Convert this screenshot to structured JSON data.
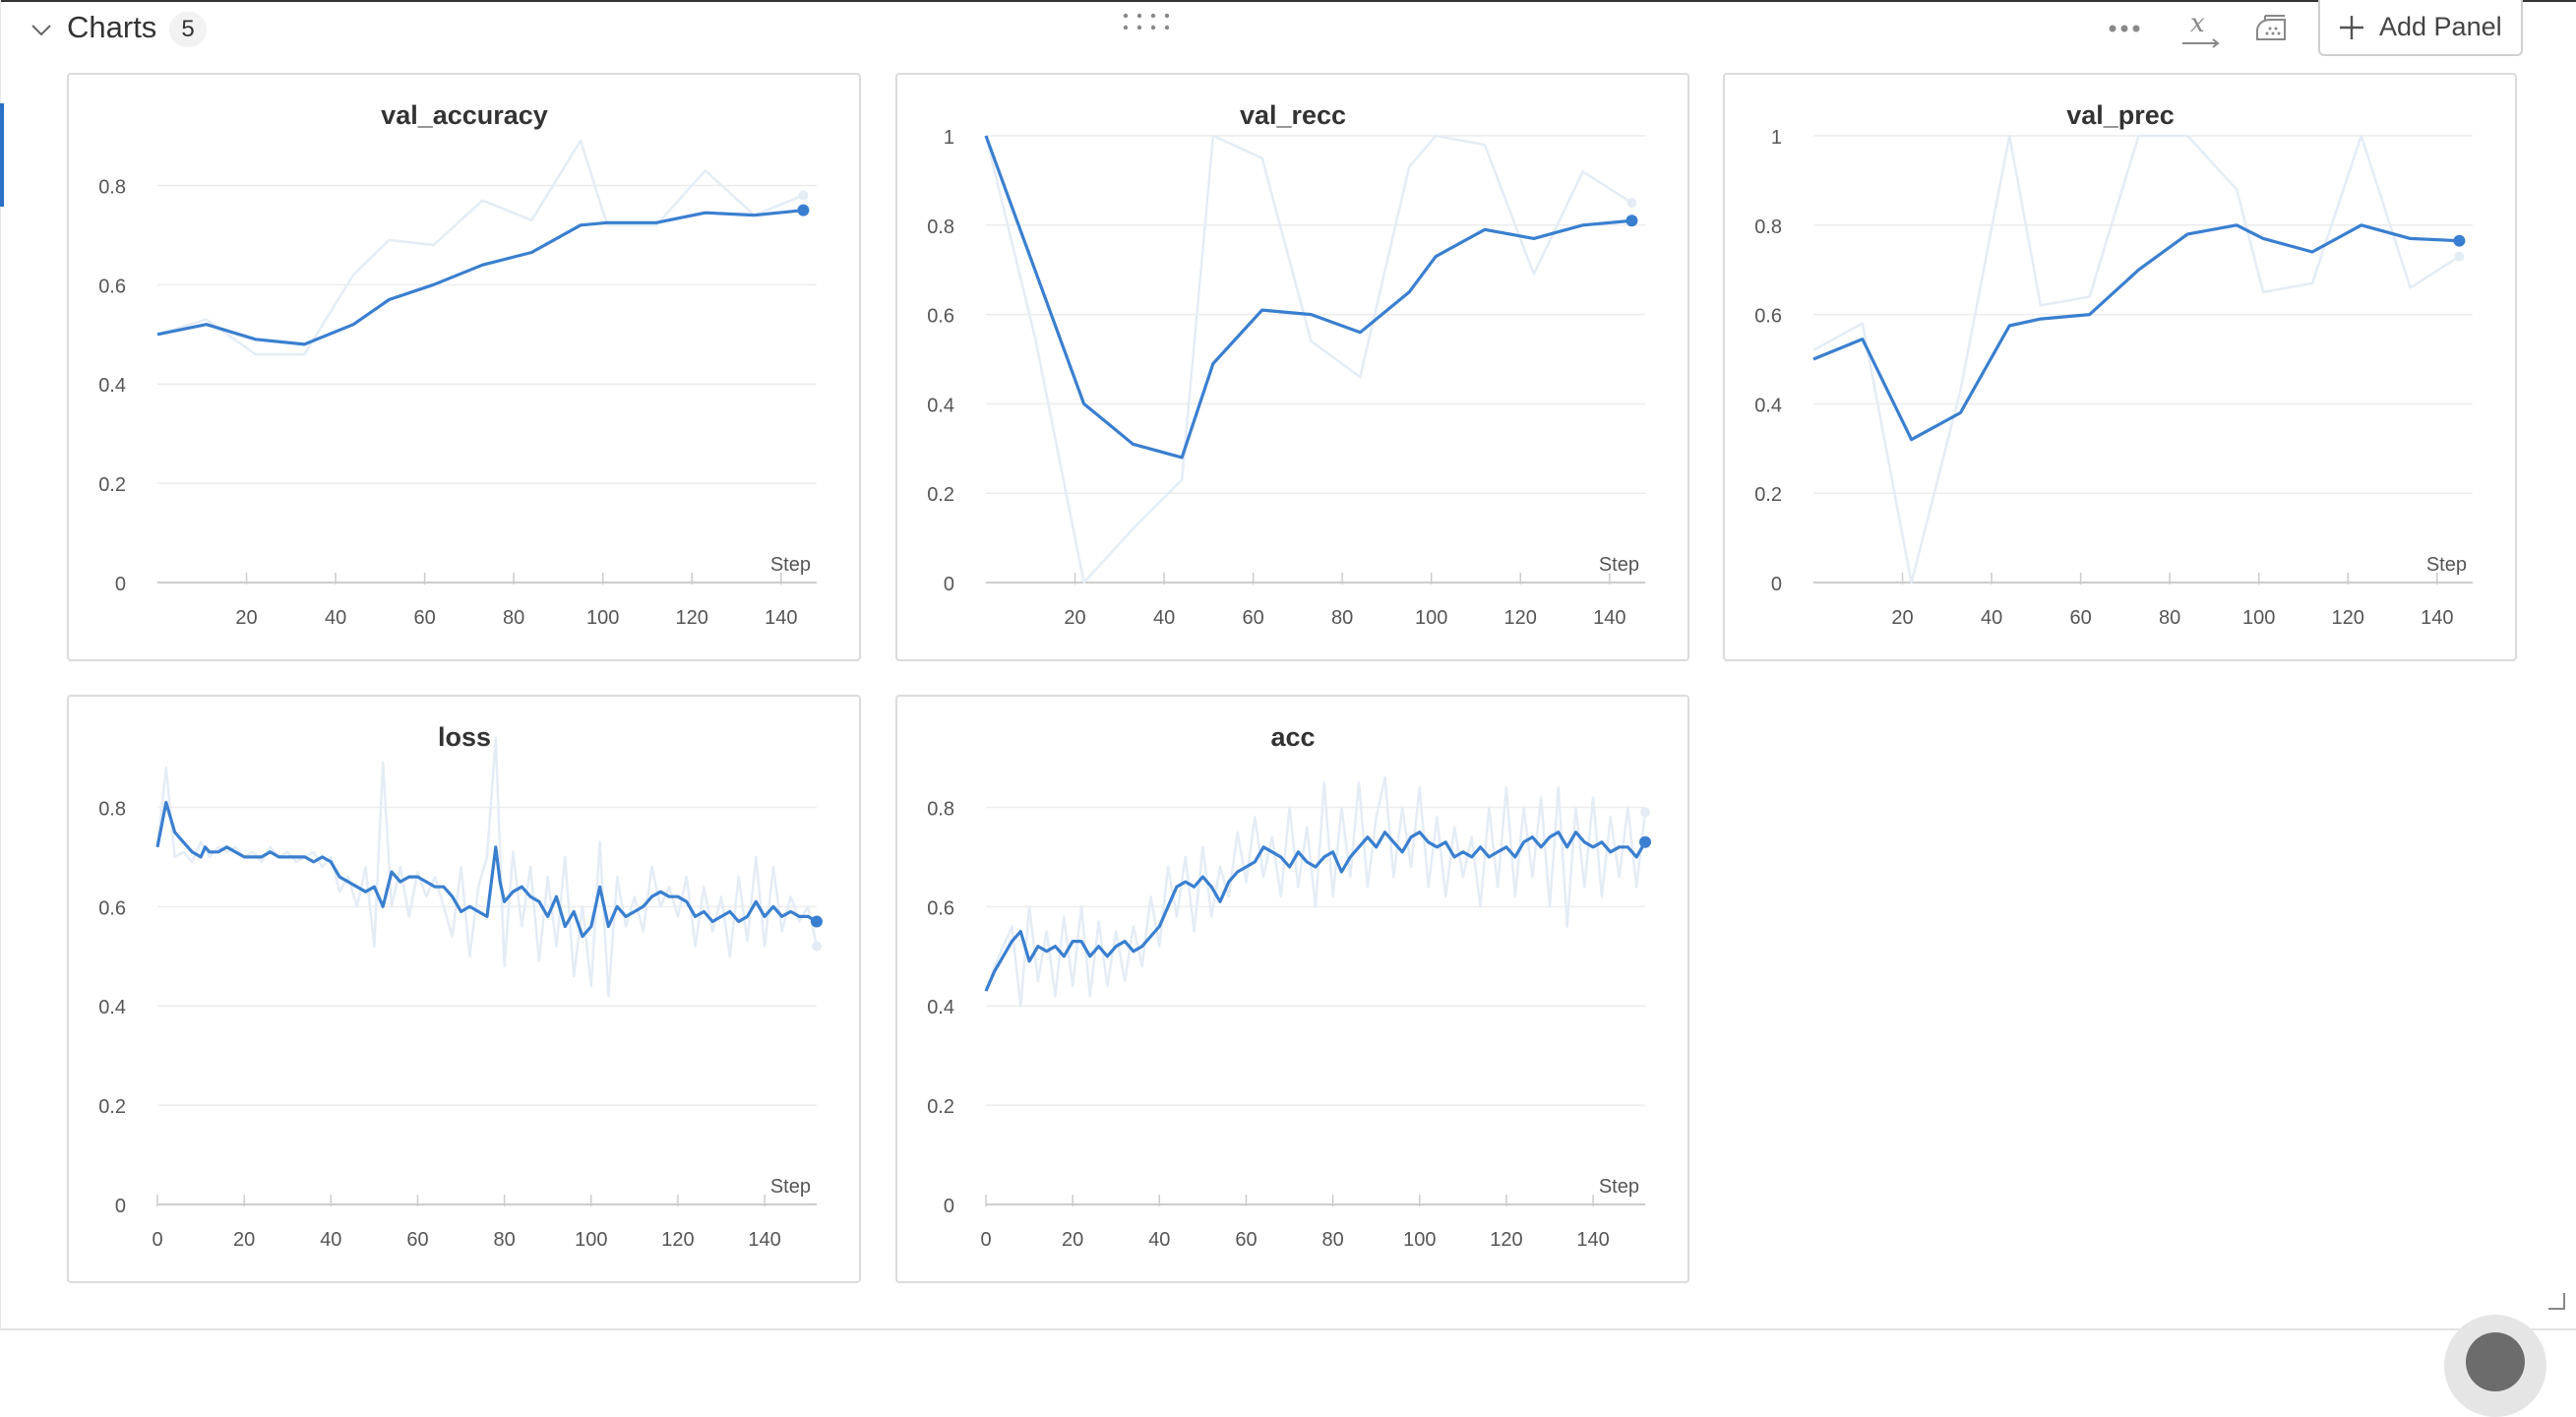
{
  "section": {
    "title": "Charts",
    "count": "5"
  },
  "header_actions": {
    "add_panel_label": "Add Panel",
    "icons": [
      "more-options-icon",
      "x-axis-settings-icon",
      "smoothing-iron-icon",
      "plus-icon",
      "drag-grip-icon",
      "chevron-down-icon"
    ]
  },
  "colors": {
    "line": "#3a7fcf",
    "raw_line": "#e4ecf5",
    "grid": "#ececec",
    "axis": "#cccccc",
    "text": "#555555"
  },
  "chart_data": [
    {
      "type": "line",
      "title": "val_accuracy",
      "xlabel": "Step",
      "ylabel": "",
      "x_ticks": [
        "20",
        "40",
        "60",
        "80",
        "100",
        "120",
        "140"
      ],
      "y_ticks": [
        "0",
        "0.2",
        "0.4",
        "0.6",
        "0.8"
      ],
      "xlim": [
        0,
        148
      ],
      "ylim": [
        0,
        0.9
      ],
      "series": [
        {
          "role": "smoothed",
          "x": [
            0,
            11,
            22,
            33,
            44,
            52,
            62,
            73,
            84,
            95,
            101,
            112,
            123,
            134,
            145
          ],
          "y": [
            0.5,
            0.52,
            0.49,
            0.48,
            0.52,
            0.57,
            0.6,
            0.64,
            0.665,
            0.72,
            0.725,
            0.725,
            0.745,
            0.74,
            0.75
          ]
        },
        {
          "role": "raw",
          "x": [
            0,
            11,
            22,
            33,
            44,
            52,
            62,
            73,
            84,
            95,
            101,
            112,
            123,
            134,
            145
          ],
          "y": [
            0.5,
            0.53,
            0.46,
            0.46,
            0.62,
            0.69,
            0.68,
            0.77,
            0.73,
            0.89,
            0.72,
            0.72,
            0.83,
            0.74,
            0.78
          ]
        }
      ]
    },
    {
      "type": "line",
      "title": "val_recc",
      "xlabel": "Step",
      "ylabel": "",
      "x_ticks": [
        "20",
        "40",
        "60",
        "80",
        "100",
        "120",
        "140"
      ],
      "y_ticks": [
        "0",
        "0.2",
        "0.4",
        "0.6",
        "0.8",
        "1"
      ],
      "xlim": [
        0,
        148
      ],
      "ylim": [
        0,
        1
      ],
      "series": [
        {
          "role": "smoothed",
          "x": [
            0,
            11,
            22,
            33,
            44,
            51,
            62,
            73,
            84,
            95,
            101,
            112,
            123,
            134,
            145
          ],
          "y": [
            1.0,
            0.7,
            0.4,
            0.31,
            0.28,
            0.49,
            0.61,
            0.6,
            0.56,
            0.65,
            0.73,
            0.79,
            0.77,
            0.8,
            0.81
          ]
        },
        {
          "role": "raw",
          "x": [
            0,
            11,
            22,
            33,
            44,
            51,
            62,
            73,
            84,
            95,
            101,
            112,
            123,
            134,
            145
          ],
          "y": [
            1.0,
            0.55,
            0.0,
            0.12,
            0.23,
            1.0,
            0.95,
            0.54,
            0.46,
            0.93,
            1.0,
            0.98,
            0.69,
            0.92,
            0.85
          ]
        }
      ]
    },
    {
      "type": "line",
      "title": "val_prec",
      "xlabel": "Step",
      "ylabel": "",
      "x_ticks": [
        "20",
        "40",
        "60",
        "80",
        "100",
        "120",
        "140"
      ],
      "y_ticks": [
        "0",
        "0.2",
        "0.4",
        "0.6",
        "0.8",
        "1"
      ],
      "xlim": [
        0,
        148
      ],
      "ylim": [
        0,
        1
      ],
      "series": [
        {
          "role": "smoothed",
          "x": [
            0,
            11,
            22,
            33,
            44,
            51,
            62,
            73,
            84,
            95,
            101,
            112,
            123,
            134,
            145
          ],
          "y": [
            0.5,
            0.545,
            0.32,
            0.38,
            0.575,
            0.59,
            0.6,
            0.7,
            0.78,
            0.8,
            0.77,
            0.74,
            0.8,
            0.77,
            0.765
          ]
        },
        {
          "role": "raw",
          "x": [
            0,
            11,
            22,
            33,
            44,
            51,
            62,
            73,
            84,
            95,
            101,
            112,
            123,
            134,
            145
          ],
          "y": [
            0.52,
            0.58,
            0.0,
            0.43,
            1.0,
            0.62,
            0.64,
            1.0,
            1.0,
            0.88,
            0.65,
            0.67,
            1.0,
            0.66,
            0.73
          ]
        }
      ]
    },
    {
      "type": "line",
      "title": "loss",
      "xlabel": "Step",
      "ylabel": "",
      "x_ticks": [
        "0",
        "20",
        "40",
        "60",
        "80",
        "100",
        "120",
        "140"
      ],
      "y_ticks": [
        "0",
        "0.2",
        "0.4",
        "0.6",
        "0.8"
      ],
      "xlim": [
        0,
        152
      ],
      "ylim": [
        0,
        0.9
      ],
      "series": [
        {
          "role": "smoothed",
          "x": [
            0,
            2,
            4,
            6,
            8,
            10,
            11,
            12,
            14,
            16,
            18,
            20,
            22,
            24,
            26,
            28,
            30,
            32,
            34,
            36,
            38,
            40,
            42,
            44,
            46,
            48,
            50,
            52,
            54,
            56,
            58,
            60,
            62,
            64,
            66,
            68,
            70,
            72,
            74,
            76,
            78,
            79,
            80,
            82,
            84,
            86,
            88,
            90,
            92,
            94,
            96,
            98,
            100,
            102,
            104,
            106,
            108,
            110,
            112,
            114,
            116,
            118,
            120,
            122,
            124,
            126,
            128,
            130,
            132,
            134,
            136,
            138,
            140,
            142,
            144,
            146,
            148,
            150,
            152
          ],
          "y": [
            0.72,
            0.81,
            0.75,
            0.73,
            0.71,
            0.7,
            0.72,
            0.71,
            0.71,
            0.72,
            0.71,
            0.7,
            0.7,
            0.7,
            0.71,
            0.7,
            0.7,
            0.7,
            0.7,
            0.69,
            0.7,
            0.69,
            0.66,
            0.65,
            0.64,
            0.63,
            0.64,
            0.6,
            0.67,
            0.65,
            0.66,
            0.66,
            0.65,
            0.64,
            0.64,
            0.62,
            0.59,
            0.6,
            0.59,
            0.58,
            0.72,
            0.65,
            0.61,
            0.63,
            0.64,
            0.62,
            0.61,
            0.58,
            0.62,
            0.56,
            0.59,
            0.54,
            0.56,
            0.64,
            0.56,
            0.6,
            0.58,
            0.59,
            0.6,
            0.62,
            0.63,
            0.62,
            0.62,
            0.61,
            0.58,
            0.59,
            0.57,
            0.58,
            0.59,
            0.57,
            0.58,
            0.61,
            0.58,
            0.6,
            0.58,
            0.59,
            0.58,
            0.58,
            0.57
          ]
        },
        {
          "role": "raw",
          "x": [
            0,
            2,
            4,
            6,
            8,
            10,
            12,
            14,
            16,
            18,
            20,
            22,
            24,
            26,
            28,
            30,
            32,
            34,
            36,
            38,
            40,
            42,
            44,
            46,
            48,
            50,
            52,
            54,
            56,
            58,
            60,
            62,
            64,
            66,
            68,
            70,
            72,
            74,
            76,
            78,
            80,
            82,
            84,
            86,
            88,
            90,
            92,
            94,
            96,
            98,
            100,
            102,
            104,
            106,
            108,
            110,
            112,
            114,
            116,
            118,
            120,
            122,
            124,
            126,
            128,
            130,
            132,
            134,
            136,
            138,
            140,
            142,
            144,
            146,
            148,
            150,
            152
          ],
          "y": [
            0.72,
            0.88,
            0.7,
            0.71,
            0.69,
            0.73,
            0.7,
            0.72,
            0.71,
            0.72,
            0.7,
            0.71,
            0.69,
            0.72,
            0.7,
            0.71,
            0.69,
            0.7,
            0.71,
            0.68,
            0.7,
            0.63,
            0.66,
            0.6,
            0.68,
            0.52,
            0.89,
            0.6,
            0.68,
            0.58,
            0.67,
            0.62,
            0.66,
            0.6,
            0.54,
            0.68,
            0.5,
            0.64,
            0.7,
            0.94,
            0.48,
            0.71,
            0.56,
            0.68,
            0.49,
            0.66,
            0.52,
            0.7,
            0.46,
            0.6,
            0.44,
            0.73,
            0.42,
            0.66,
            0.56,
            0.62,
            0.55,
            0.68,
            0.6,
            0.64,
            0.58,
            0.66,
            0.52,
            0.64,
            0.55,
            0.62,
            0.5,
            0.66,
            0.53,
            0.7,
            0.52,
            0.68,
            0.55,
            0.62,
            0.57,
            0.6,
            0.52
          ]
        }
      ]
    },
    {
      "type": "line",
      "title": "acc",
      "xlabel": "Step",
      "ylabel": "",
      "x_ticks": [
        "0",
        "20",
        "40",
        "60",
        "80",
        "100",
        "120",
        "140"
      ],
      "y_ticks": [
        "0",
        "0.2",
        "0.4",
        "0.6",
        "0.8"
      ],
      "xlim": [
        0,
        152
      ],
      "ylim": [
        0,
        0.9
      ],
      "series": [
        {
          "role": "smoothed",
          "x": [
            0,
            2,
            4,
            6,
            8,
            10,
            12,
            14,
            16,
            18,
            20,
            22,
            24,
            26,
            28,
            30,
            32,
            34,
            36,
            38,
            40,
            42,
            44,
            46,
            48,
            50,
            52,
            54,
            56,
            58,
            60,
            62,
            64,
            66,
            68,
            70,
            72,
            74,
            76,
            78,
            80,
            82,
            84,
            86,
            88,
            90,
            92,
            94,
            96,
            98,
            100,
            102,
            104,
            106,
            108,
            110,
            112,
            114,
            116,
            118,
            120,
            122,
            124,
            126,
            128,
            130,
            132,
            134,
            136,
            138,
            140,
            142,
            144,
            146,
            148,
            150,
            152
          ],
          "y": [
            0.43,
            0.47,
            0.5,
            0.53,
            0.55,
            0.49,
            0.52,
            0.51,
            0.52,
            0.5,
            0.53,
            0.53,
            0.5,
            0.52,
            0.5,
            0.52,
            0.53,
            0.51,
            0.52,
            0.54,
            0.56,
            0.6,
            0.64,
            0.65,
            0.64,
            0.66,
            0.64,
            0.61,
            0.65,
            0.67,
            0.68,
            0.69,
            0.72,
            0.71,
            0.7,
            0.68,
            0.71,
            0.69,
            0.68,
            0.7,
            0.71,
            0.67,
            0.7,
            0.72,
            0.74,
            0.72,
            0.75,
            0.73,
            0.71,
            0.74,
            0.75,
            0.73,
            0.72,
            0.73,
            0.7,
            0.71,
            0.7,
            0.72,
            0.7,
            0.71,
            0.72,
            0.7,
            0.73,
            0.74,
            0.72,
            0.74,
            0.75,
            0.72,
            0.75,
            0.73,
            0.72,
            0.73,
            0.71,
            0.72,
            0.72,
            0.7,
            0.73
          ]
        },
        {
          "role": "raw",
          "x": [
            0,
            2,
            4,
            6,
            8,
            10,
            12,
            14,
            16,
            18,
            20,
            22,
            24,
            26,
            28,
            30,
            32,
            34,
            36,
            38,
            40,
            42,
            44,
            46,
            48,
            50,
            52,
            54,
            56,
            58,
            60,
            62,
            64,
            66,
            68,
            70,
            72,
            74,
            76,
            78,
            80,
            82,
            84,
            86,
            88,
            90,
            92,
            94,
            96,
            98,
            100,
            102,
            104,
            106,
            108,
            110,
            112,
            114,
            116,
            118,
            120,
            122,
            124,
            126,
            128,
            130,
            132,
            134,
            136,
            138,
            140,
            142,
            144,
            146,
            148,
            150,
            152
          ],
          "y": [
            0.43,
            0.48,
            0.52,
            0.56,
            0.4,
            0.6,
            0.45,
            0.55,
            0.42,
            0.58,
            0.44,
            0.6,
            0.42,
            0.57,
            0.44,
            0.55,
            0.45,
            0.56,
            0.48,
            0.62,
            0.52,
            0.68,
            0.58,
            0.7,
            0.55,
            0.72,
            0.58,
            0.68,
            0.62,
            0.75,
            0.65,
            0.78,
            0.66,
            0.74,
            0.62,
            0.8,
            0.64,
            0.76,
            0.6,
            0.85,
            0.62,
            0.8,
            0.66,
            0.85,
            0.64,
            0.78,
            0.86,
            0.66,
            0.8,
            0.68,
            0.84,
            0.64,
            0.78,
            0.62,
            0.76,
            0.66,
            0.74,
            0.6,
            0.8,
            0.64,
            0.84,
            0.62,
            0.8,
            0.66,
            0.82,
            0.6,
            0.84,
            0.56,
            0.8,
            0.64,
            0.82,
            0.62,
            0.78,
            0.66,
            0.8,
            0.64,
            0.79
          ]
        }
      ]
    }
  ]
}
